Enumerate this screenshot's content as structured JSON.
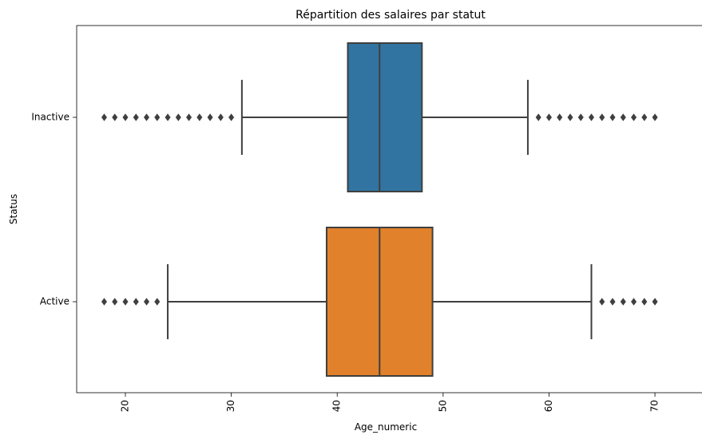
{
  "chart_data": {
    "type": "box",
    "orientation": "horizontal",
    "title": "Répartition des salaires par statut",
    "xlabel": "Age_numeric",
    "ylabel": "Status",
    "xlim": [
      15.4,
      71.2
    ],
    "xticks": [
      20,
      30,
      40,
      50,
      60,
      70
    ],
    "xtick_rotation": 90,
    "grid": false,
    "legend": "none",
    "categories": [
      "Inactive",
      "Active"
    ],
    "boxes": [
      {
        "category": "Inactive",
        "color": "#3274a1",
        "whisker_low": 31,
        "q1": 41,
        "median": 44,
        "q3": 48,
        "whisker_high": 58,
        "outliers": [
          18,
          19,
          20,
          21,
          22,
          23,
          24,
          25,
          26,
          27,
          28,
          29,
          30,
          59,
          60,
          61,
          62,
          63,
          64,
          65,
          66,
          67,
          68,
          69,
          70
        ]
      },
      {
        "category": "Active",
        "color": "#e1812c",
        "whisker_low": 24,
        "q1": 39,
        "median": 44,
        "q3": 49,
        "whisker_high": 64,
        "outliers": [
          18,
          19,
          20,
          21,
          22,
          23,
          65,
          66,
          67,
          68,
          69,
          70
        ]
      }
    ]
  }
}
